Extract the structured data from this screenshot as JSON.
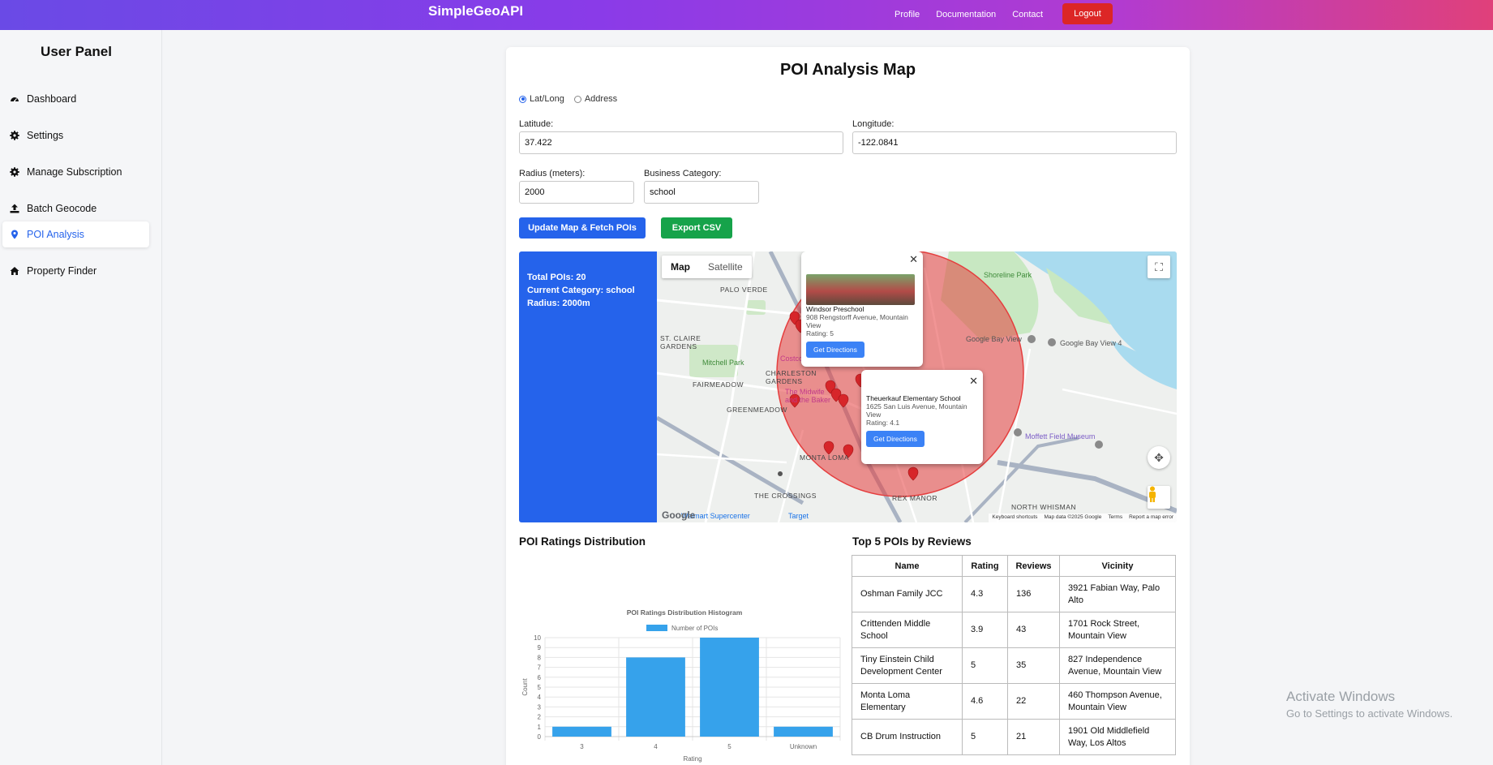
{
  "nav": {
    "brand": "SimpleGeoAPI",
    "links": [
      "Profile",
      "Documentation",
      "Contact"
    ],
    "logout": "Logout"
  },
  "sidebar": {
    "title": "User Panel",
    "items": [
      {
        "label": "Dashboard",
        "icon": "dashboard-icon"
      },
      {
        "label": "Settings",
        "icon": "gear-icon"
      },
      {
        "label": "Manage Subscription",
        "icon": "gear-icon"
      },
      {
        "label": "Batch Geocode",
        "icon": "upload-icon"
      },
      {
        "label": "POI Analysis",
        "icon": "map-pin-icon",
        "active": true
      },
      {
        "label": "Property Finder",
        "icon": "home-icon"
      }
    ]
  },
  "form": {
    "title": "POI Analysis Map",
    "mode_options": [
      "Lat/Long",
      "Address"
    ],
    "mode_selected": "Lat/Long",
    "latitude_label": "Latitude:",
    "latitude_value": "37.422",
    "longitude_label": "Longitude:",
    "longitude_value": "-122.0841",
    "radius_label": "Radius (meters):",
    "radius_value": "2000",
    "category_label": "Business Category:",
    "category_value": "school",
    "update_button": "Update Map & Fetch POIs",
    "export_button": "Export CSV"
  },
  "info_panel": {
    "total": "Total POIs: 20",
    "category": "Current Category: school",
    "radius": "Radius: 2000m"
  },
  "map": {
    "type_options": [
      "Map",
      "Satellite"
    ],
    "type_selected": "Map",
    "area_labels": [
      "PALO VERDE",
      "ST. CLAIRE GARDENS",
      "FAIRMEADOW",
      "CHARLESTON GARDENS",
      "GREENMEADOW",
      "MONTA LOMA",
      "THE CROSSINGS",
      "REX MANOR",
      "NORTH WHISMAN"
    ],
    "place_labels": [
      "Mitchell Park",
      "Google Bay View",
      "Google Bay View 4",
      "Moffett Field Museum",
      "Target",
      "Walmart Supercenter",
      "Costco",
      "Shoreline Park",
      "The Midwife and the Baker"
    ],
    "popups": [
      {
        "name": "Windsor Preschool",
        "address": "908 Rengstorff Avenue, Mountain View",
        "rating": "Rating: 5",
        "button": "Get Directions"
      },
      {
        "name": "Theuerkauf Elementary School",
        "address": "1625 San Luis Avenue, Mountain View",
        "rating": "Rating: 4.1",
        "button": "Get Directions"
      }
    ],
    "footer": [
      "Keyboard shortcuts",
      "Map data ©2025 Google",
      "Terms",
      "Report a map error"
    ],
    "circle_color": "#e53e3e"
  },
  "ratings": {
    "section_title": "POI Ratings Distribution"
  },
  "chart_data": {
    "type": "bar",
    "title": "POI Ratings Distribution Histogram",
    "categories": [
      "3",
      "4",
      "5",
      "Unknown"
    ],
    "series": [
      {
        "name": "Number of POIs",
        "values": [
          1,
          8,
          10,
          1
        ]
      }
    ],
    "xlabel": "Rating",
    "ylabel": "Count",
    "ylim": [
      0,
      10
    ],
    "yticks": [
      0,
      1,
      2,
      3,
      4,
      5,
      6,
      7,
      8,
      9,
      10
    ],
    "color": "#36a2eb",
    "grid": true,
    "legend": "top"
  },
  "top5": {
    "section_title": "Top 5 POIs by Reviews",
    "headers": [
      "Name",
      "Rating",
      "Reviews",
      "Vicinity"
    ],
    "rows": [
      [
        "Oshman Family JCC",
        "4.3",
        "136",
        "3921 Fabian Way, Palo Alto"
      ],
      [
        "Crittenden Middle School",
        "3.9",
        "43",
        "1701 Rock Street, Mountain View"
      ],
      [
        "Tiny Einstein Child Development Center",
        "5",
        "35",
        "827 Independence Avenue, Mountain View"
      ],
      [
        "Monta Loma Elementary",
        "4.6",
        "22",
        "460 Thompson Avenue, Mountain View"
      ],
      [
        "CB Drum Instruction",
        "5",
        "21",
        "1901 Old Middlefield Way, Los Altos"
      ]
    ]
  },
  "watermark": {
    "line1": "Activate Windows",
    "line2": "Go to Settings to activate Windows."
  }
}
